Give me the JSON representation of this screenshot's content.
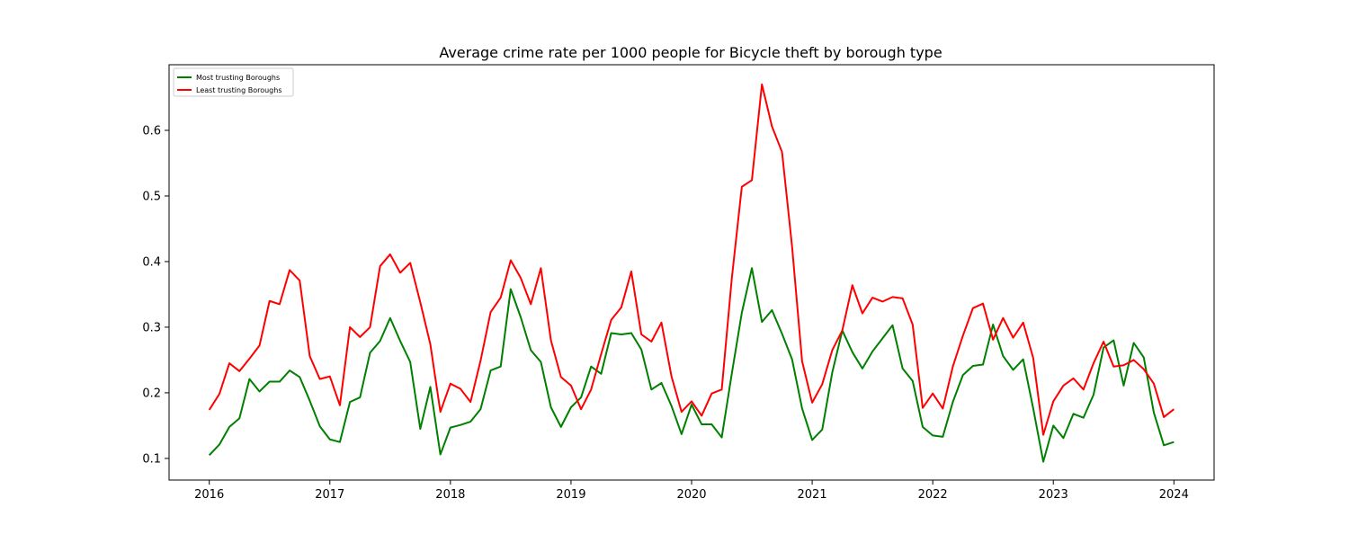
{
  "chart_data": {
    "type": "line",
    "title": "Average crime rate per 1000 people for Bicycle theft by borough type",
    "xlabel": "",
    "ylabel": "",
    "x_ticks": [
      "2016",
      "2017",
      "2018",
      "2019",
      "2020",
      "2021",
      "2022",
      "2023",
      "2024"
    ],
    "y_ticks": [
      "0.1",
      "0.2",
      "0.3",
      "0.4",
      "0.5",
      "0.6"
    ],
    "xlim": [
      "2015-09",
      "2024-05"
    ],
    "ylim": [
      0.067,
      0.7
    ],
    "legend_position": "top-left",
    "grid": false,
    "x": [
      "2016-01",
      "2016-02",
      "2016-03",
      "2016-04",
      "2016-05",
      "2016-06",
      "2016-07",
      "2016-08",
      "2016-09",
      "2016-10",
      "2016-11",
      "2016-12",
      "2017-01",
      "2017-02",
      "2017-03",
      "2017-04",
      "2017-05",
      "2017-06",
      "2017-07",
      "2017-08",
      "2017-09",
      "2017-10",
      "2017-11",
      "2017-12",
      "2018-01",
      "2018-02",
      "2018-03",
      "2018-04",
      "2018-05",
      "2018-06",
      "2018-07",
      "2018-08",
      "2018-09",
      "2018-10",
      "2018-11",
      "2018-12",
      "2019-01",
      "2019-02",
      "2019-03",
      "2019-04",
      "2019-05",
      "2019-06",
      "2019-07",
      "2019-08",
      "2019-09",
      "2019-10",
      "2019-11",
      "2019-12",
      "2020-01",
      "2020-02",
      "2020-03",
      "2020-04",
      "2020-05",
      "2020-06",
      "2020-07",
      "2020-08",
      "2020-09",
      "2020-10",
      "2020-11",
      "2020-12",
      "2021-01",
      "2021-02",
      "2021-03",
      "2021-04",
      "2021-05",
      "2021-06",
      "2021-07",
      "2021-08",
      "2021-09",
      "2021-10",
      "2021-11",
      "2021-12",
      "2022-01",
      "2022-02",
      "2022-03",
      "2022-04",
      "2022-05",
      "2022-06",
      "2022-07",
      "2022-08",
      "2022-09",
      "2022-10",
      "2022-11",
      "2022-12",
      "2023-01",
      "2023-02",
      "2023-03",
      "2023-04",
      "2023-05",
      "2023-06",
      "2023-07",
      "2023-08",
      "2023-09",
      "2023-10",
      "2023-11",
      "2023-12",
      "2024-01"
    ],
    "series": [
      {
        "name": "Most trusting Boroughs",
        "color": "#008000",
        "values": [
          0.105,
          0.121,
          0.148,
          0.161,
          0.221,
          0.202,
          0.217,
          0.217,
          0.234,
          0.224,
          0.188,
          0.149,
          0.129,
          0.125,
          0.186,
          0.193,
          0.261,
          0.279,
          0.314,
          0.279,
          0.247,
          0.145,
          0.209,
          0.106,
          0.147,
          0.151,
          0.156,
          0.175,
          0.234,
          0.24,
          0.358,
          0.315,
          0.265,
          0.247,
          0.178,
          0.148,
          0.178,
          0.193,
          0.24,
          0.229,
          0.291,
          0.289,
          0.291,
          0.266,
          0.205,
          0.215,
          0.18,
          0.137,
          0.182,
          0.152,
          0.152,
          0.132,
          0.229,
          0.322,
          0.39,
          0.308,
          0.326,
          0.29,
          0.251,
          0.176,
          0.128,
          0.144,
          0.231,
          0.295,
          0.262,
          0.237,
          0.263,
          0.283,
          0.303,
          0.237,
          0.218,
          0.148,
          0.135,
          0.133,
          0.186,
          0.227,
          0.241,
          0.243,
          0.304,
          0.256,
          0.235,
          0.251,
          0.176,
          0.095,
          0.15,
          0.131,
          0.168,
          0.162,
          0.197,
          0.269,
          0.28,
          0.211,
          0.276,
          0.254,
          0.17,
          0.12,
          0.125
        ]
      },
      {
        "name": "Least trusting Boroughs",
        "color": "#ff0000",
        "values": [
          0.174,
          0.198,
          0.245,
          0.233,
          0.252,
          0.272,
          0.34,
          0.335,
          0.387,
          0.371,
          0.256,
          0.221,
          0.225,
          0.181,
          0.3,
          0.285,
          0.3,
          0.393,
          0.411,
          0.383,
          0.398,
          0.338,
          0.274,
          0.171,
          0.214,
          0.206,
          0.186,
          0.249,
          0.323,
          0.345,
          0.402,
          0.375,
          0.335,
          0.39,
          0.28,
          0.224,
          0.211,
          0.175,
          0.205,
          0.259,
          0.311,
          0.33,
          0.385,
          0.289,
          0.278,
          0.307,
          0.225,
          0.171,
          0.187,
          0.165,
          0.199,
          0.205,
          0.374,
          0.514,
          0.524,
          0.67,
          0.606,
          0.567,
          0.423,
          0.248,
          0.185,
          0.213,
          0.265,
          0.295,
          0.364,
          0.321,
          0.345,
          0.339,
          0.346,
          0.344,
          0.304,
          0.177,
          0.199,
          0.176,
          0.24,
          0.287,
          0.329,
          0.336,
          0.281,
          0.314,
          0.284,
          0.307,
          0.253,
          0.136,
          0.187,
          0.211,
          0.222,
          0.205,
          0.245,
          0.278,
          0.24,
          0.242,
          0.25,
          0.236,
          0.214,
          0.163,
          0.175
        ]
      }
    ]
  }
}
